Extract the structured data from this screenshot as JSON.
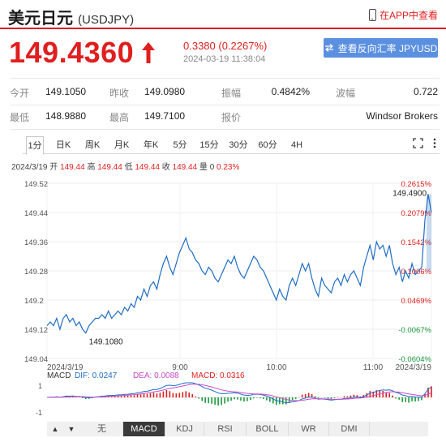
{
  "header": {
    "title": "美元日元",
    "symbol": "(USDJPY)",
    "app_link": "在APP中查看"
  },
  "quote": {
    "price": "149.4360",
    "change": "0.3380 (0.2267%)",
    "datetime": "2024-03-19 11:38:04",
    "rate_button": "查看反向汇率 JPYUSD",
    "up_color": "#e01f1f"
  },
  "stats": [
    [
      {
        "label": "今开",
        "value": "149.1050"
      },
      {
        "label": "昨收",
        "value": "149.0980"
      },
      {
        "label": "振幅",
        "value": "0.4842%"
      },
      {
        "label": "波幅",
        "value": "0.722"
      }
    ],
    [
      {
        "label": "最低",
        "value": "148.9880"
      },
      {
        "label": "最高",
        "value": "149.7100"
      },
      {
        "label": "报价",
        "value": ""
      },
      {
        "label": "",
        "value": "Windsor Brokers"
      }
    ]
  ],
  "tabs": [
    "1分",
    "日K",
    "周K",
    "月K",
    "年K",
    "5分",
    "15分",
    "30分",
    "60分",
    "4H"
  ],
  "ohlc": {
    "date": "2024/3/19",
    "open_label": "开",
    "open": "149.44",
    "high_label": "高",
    "high": "149.44",
    "low_label": "低",
    "low": "149.44",
    "close_label": "收",
    "close": "149.44",
    "vol_label": "量",
    "vol": "0",
    "pct": "0.23%"
  },
  "indicator": {
    "title": "MACD",
    "dif": "DIF: 0.0247",
    "dea": "DEA: 0.0088",
    "macd": "MACD: 0.0316",
    "ticks": [
      "1",
      "-1"
    ],
    "tabs": [
      "无",
      "MACD",
      "KDJ",
      "RSI",
      "BOLL",
      "WR",
      "DMI"
    ],
    "nav": [
      "▲",
      "▼"
    ]
  },
  "chart_data": {
    "type": "line",
    "y_left_ticks": [
      "149.52",
      "149.44",
      "149.36",
      "149.28",
      "149.2",
      "149.12",
      "149.04"
    ],
    "y_right_ticks": [
      "0.2615%",
      "0.2079%",
      "0.1542%",
      "0.1006%",
      "0.0469%",
      "-0.0067%",
      "-0.0604%"
    ],
    "ylim": [
      149.04,
      149.52
    ],
    "x_ticks": [
      "2024/3/19",
      "9:00",
      "10:00",
      "11:00",
      "2024/3/19"
    ],
    "annotations": {
      "max": "149.4900",
      "min": "149.1080"
    },
    "series": [
      {
        "values": [
          149.13,
          149.14,
          149.13,
          149.15,
          149.12,
          149.15,
          149.16,
          149.14,
          149.15,
          149.13,
          149.14,
          149.12,
          149.11,
          149.13,
          149.14,
          149.15,
          149.15,
          149.16,
          149.15,
          149.17,
          149.15,
          149.16,
          149.17,
          149.16,
          149.18,
          149.17,
          149.19,
          149.18,
          149.21,
          149.2,
          149.23,
          149.21,
          149.24,
          149.25,
          149.23,
          149.27,
          149.3,
          149.32,
          149.29,
          149.27,
          149.3,
          149.33,
          149.35,
          149.37,
          149.34,
          149.33,
          149.31,
          149.3,
          149.28,
          149.27,
          149.29,
          149.28,
          149.26,
          149.25,
          149.27,
          149.29,
          149.31,
          149.3,
          149.32,
          149.29,
          149.27,
          149.26,
          149.28,
          149.3,
          149.32,
          149.31,
          149.29,
          149.28,
          149.26,
          149.24,
          149.22,
          149.2,
          149.23,
          149.21,
          149.2,
          149.24,
          149.26,
          149.24,
          149.27,
          149.3,
          149.28,
          149.3,
          149.26,
          149.23,
          149.21,
          149.26,
          149.24,
          149.23,
          149.22,
          149.25,
          149.26,
          149.24,
          149.27,
          149.25,
          149.27,
          149.28,
          149.26,
          149.24,
          149.29,
          149.32,
          149.35,
          149.31,
          149.36,
          149.34,
          149.35,
          149.32,
          149.35,
          149.3,
          149.27,
          149.29,
          149.25,
          149.28,
          149.26,
          149.3,
          149.27,
          149.28,
          149.29,
          149.42,
          149.49,
          149.44
        ]
      }
    ]
  }
}
